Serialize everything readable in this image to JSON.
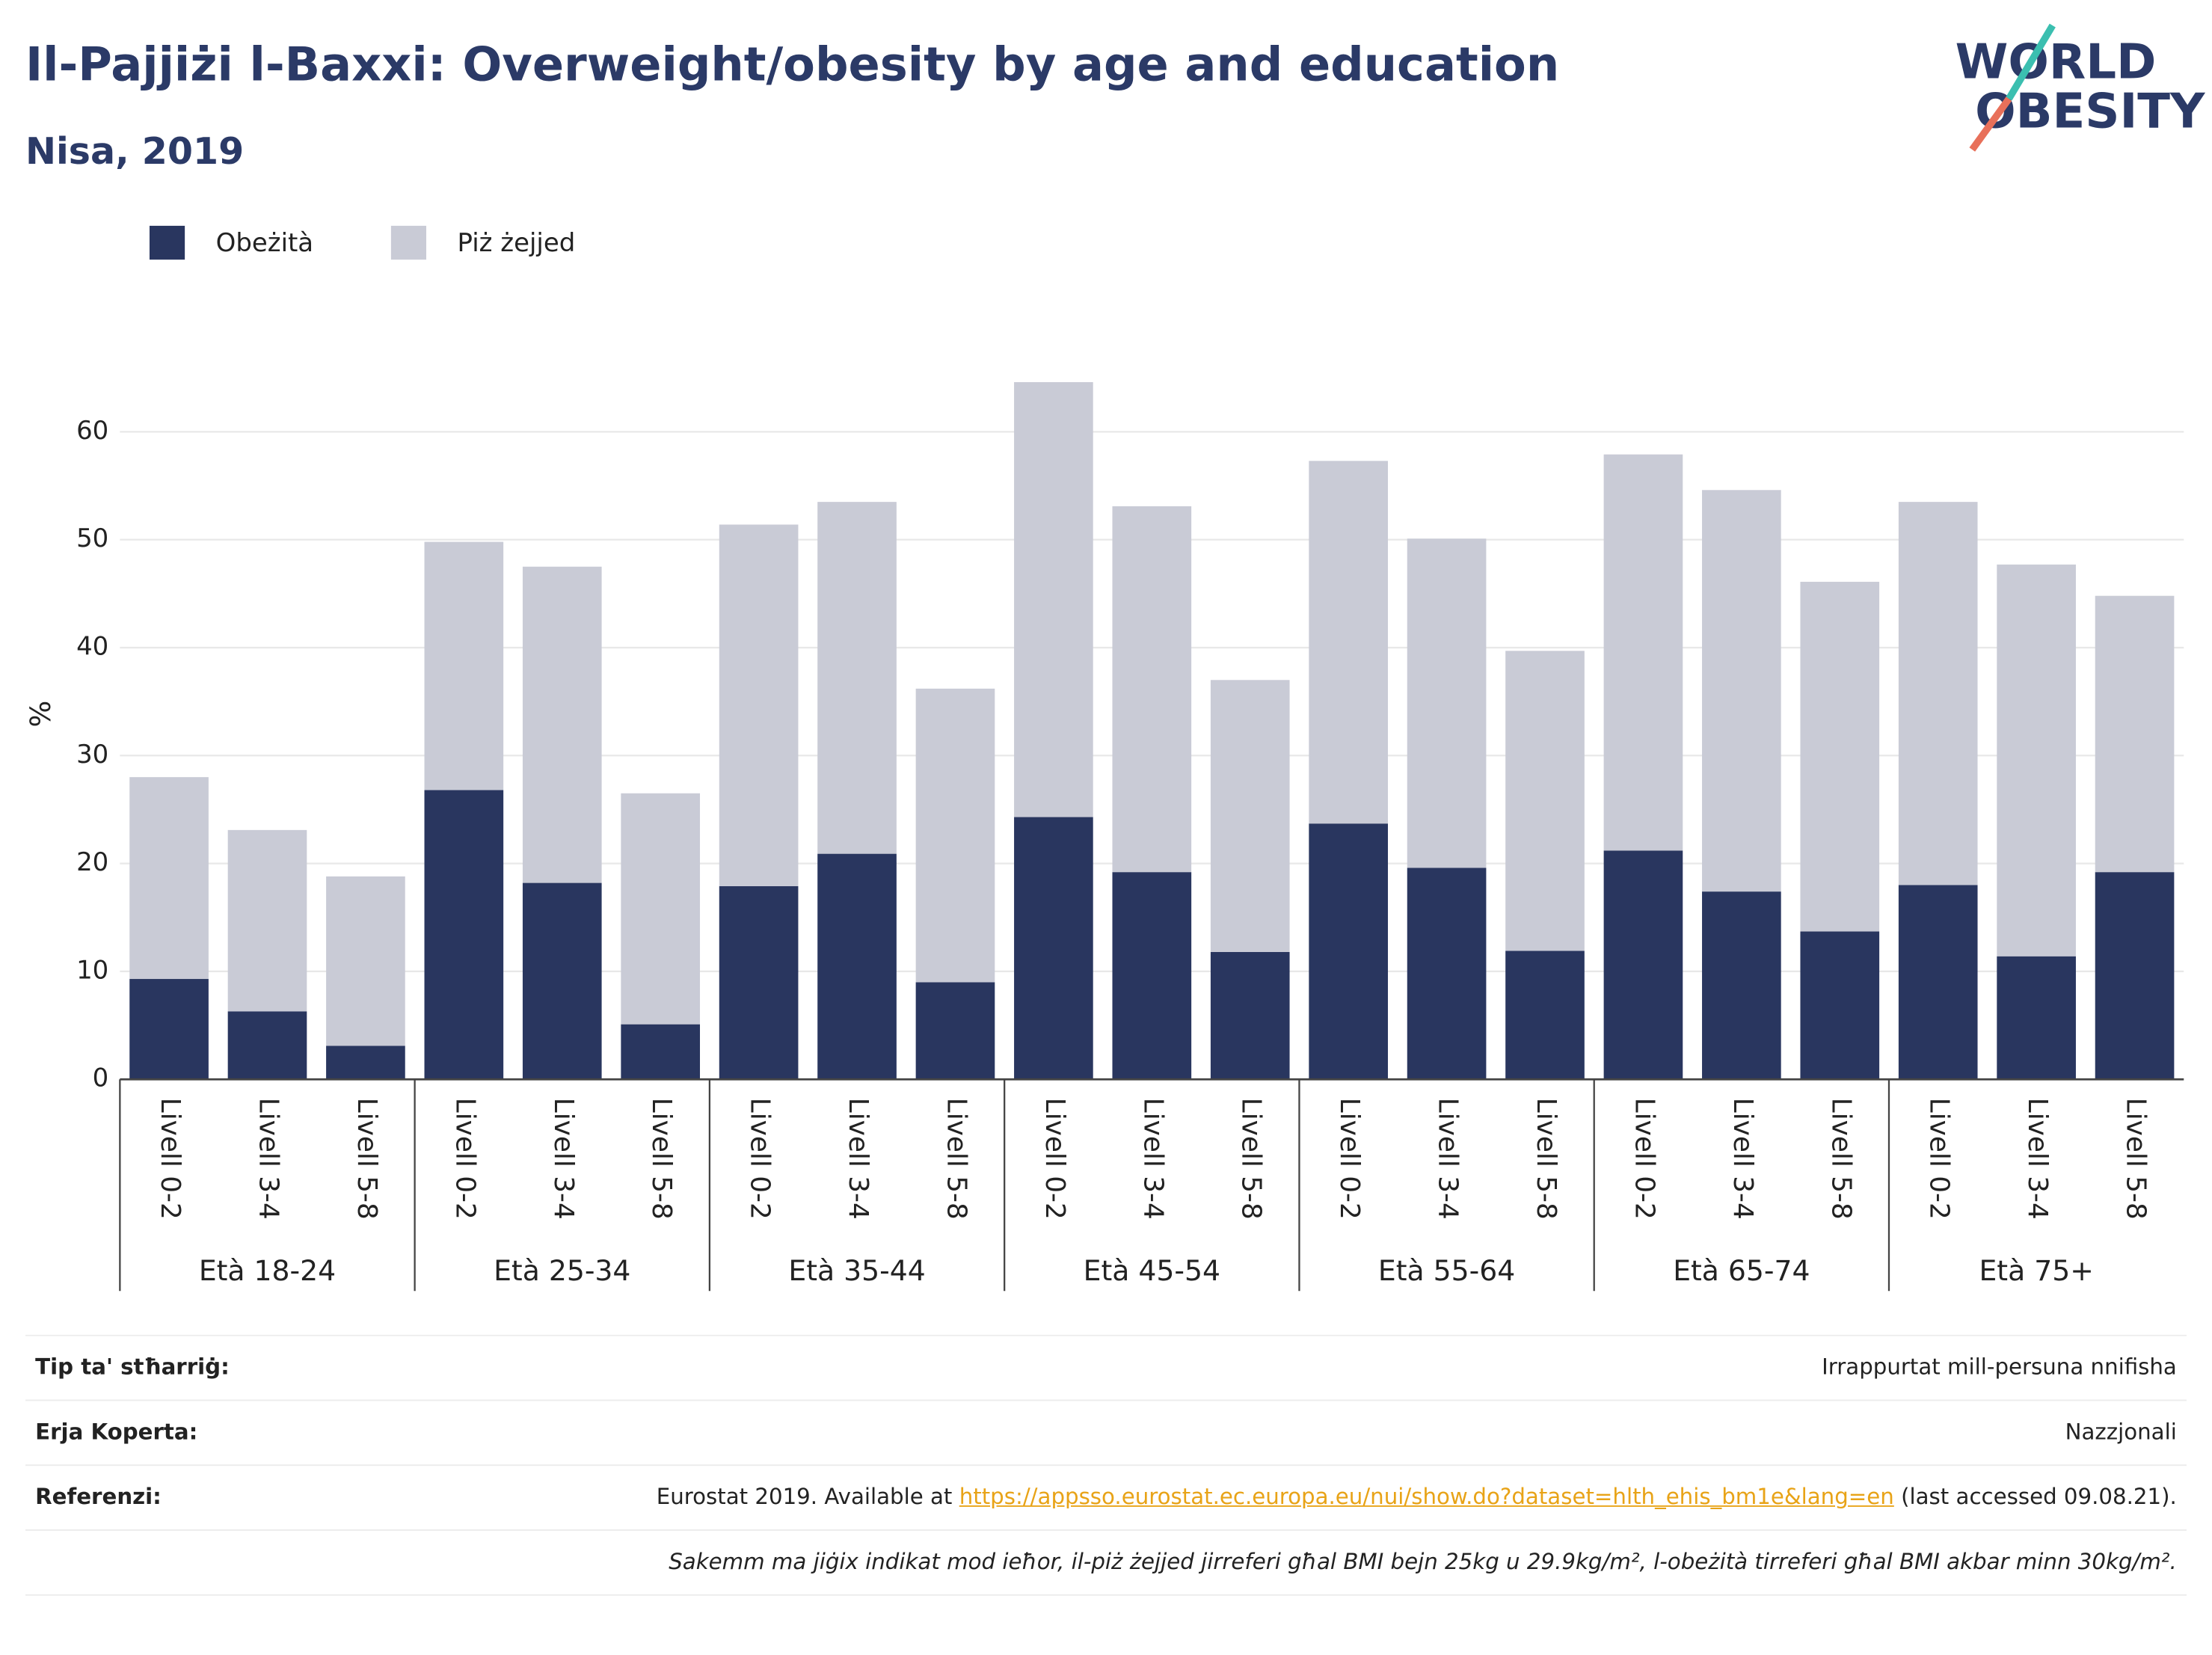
{
  "chart_data": {
    "type": "stacked_bar",
    "title": "Il-Pajjiżi l-Baxxi: Overweight/obesity by age and education",
    "subtitle": "Nisa, 2019",
    "y_label": "%",
    "groups": [
      "Età 18-24",
      "Età 25-34",
      "Età 35-44",
      "Età 45-54",
      "Età 55-64",
      "Età 65-74",
      "Età 75+"
    ],
    "categories": [
      "Livell 0-2",
      "Livell 3-4",
      "Livell 5-8",
      "Livell 0-2",
      "Livell 3-4",
      "Livell 5-8",
      "Livell 0-2",
      "Livell 3-4",
      "Livell 5-8",
      "Livell 0-2",
      "Livell 3-4",
      "Livell 5-8",
      "Livell 0-2",
      "Livell 3-4",
      "Livell 5-8",
      "Livell 0-2",
      "Livell 3-4",
      "Livell 5-8",
      "Livell 0-2",
      "Livell 3-4",
      "Livell 5-8"
    ],
    "series": [
      {
        "name": "Obeżità",
        "color": "#29365f",
        "values": [
          9.3,
          6.3,
          3.1,
          26.8,
          18.2,
          5.1,
          17.9,
          20.9,
          9.0,
          24.3,
          19.2,
          11.8,
          23.7,
          19.6,
          11.9,
          21.2,
          17.4,
          13.7,
          18.0,
          11.4,
          19.2
        ]
      },
      {
        "name": "Piż żejjed",
        "color": "#c9cbd6",
        "values": [
          18.7,
          16.8,
          15.7,
          23.0,
          29.3,
          21.4,
          33.5,
          32.6,
          27.2,
          40.3,
          33.9,
          25.2,
          33.6,
          30.5,
          27.8,
          36.7,
          37.2,
          32.4,
          35.5,
          36.3,
          25.6
        ]
      }
    ],
    "ylim": [
      0,
      65
    ],
    "yticks": [
      0,
      10,
      20,
      30,
      40,
      50,
      60
    ],
    "grid": true,
    "legend": "top-left"
  },
  "logo": [
    "WORLD",
    "OBESITY"
  ],
  "footer": {
    "rows": [
      {
        "label": "Tip ta' stħarriġ:",
        "value": "Irrappurtat mill-persuna nnifisha"
      },
      {
        "label": "Erja Koperta:",
        "value": "Nazzjonali"
      }
    ],
    "reference": {
      "label": "Referenzi:",
      "text": "Eurostat 2019. Available at ",
      "link": "https://appsso.eurostat.ec.europa.eu/nui/show.do?dataset=hlth_ehis_bm1e&lang=en",
      "after": " (last accessed 09.08.21)."
    },
    "note": "Sakemm ma jiġix indikat mod ieħor, il-piż żejjed jirreferi għal BMI bejn 25kg u 29.9kg/m², l-obeżità tirreferi għal BMI akbar minn 30kg/m²."
  }
}
